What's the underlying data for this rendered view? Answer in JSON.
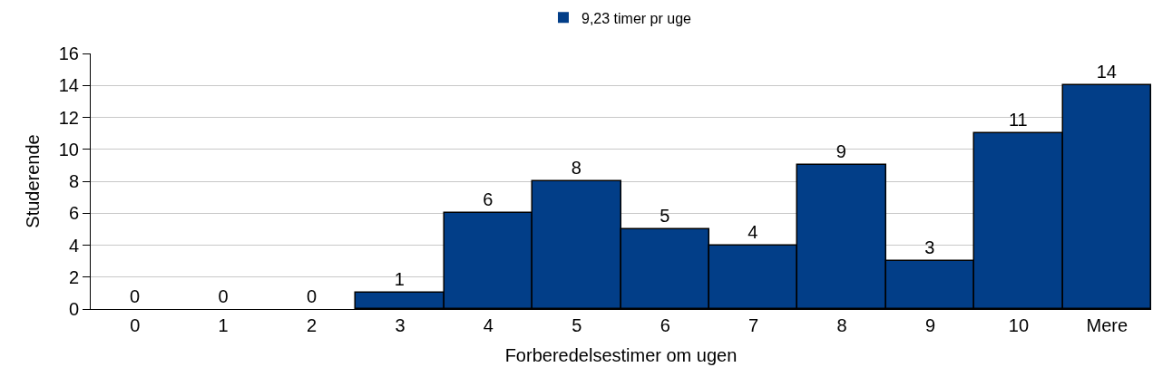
{
  "chart_data": {
    "type": "bar",
    "xlabel": "Forberedelsestimer om ugen",
    "ylabel": "Studerende",
    "categories": [
      "0",
      "1",
      "2",
      "3",
      "4",
      "5",
      "6",
      "7",
      "8",
      "9",
      "10",
      "Mere"
    ],
    "series": [
      {
        "name": "9,23 timer pr uge",
        "color": "#023e88",
        "values": [
          0,
          0,
          0,
          1,
          6,
          8,
          5,
          4,
          9,
          3,
          11,
          14
        ]
      }
    ],
    "ylim": [
      0,
      16
    ],
    "yticks": [
      0,
      2,
      4,
      6,
      8,
      10,
      12,
      14,
      16
    ],
    "grid": "y",
    "legend": "top",
    "data_labels": true
  }
}
